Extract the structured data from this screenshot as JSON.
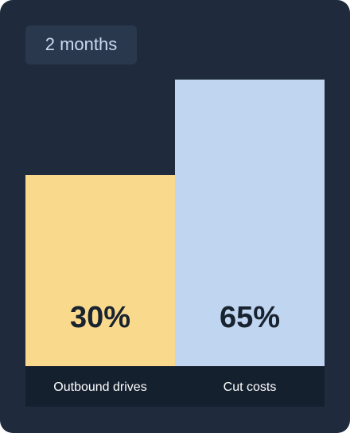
{
  "badge": "2 months",
  "chart_data": {
    "type": "bar",
    "categories": [
      "Outbound drives",
      "Cut costs"
    ],
    "values": [
      30,
      65
    ],
    "value_labels": [
      "30%",
      "65%"
    ],
    "colors": [
      "#f9d98c",
      "#bfd5f0"
    ],
    "ylim": [
      -40,
      65
    ]
  }
}
